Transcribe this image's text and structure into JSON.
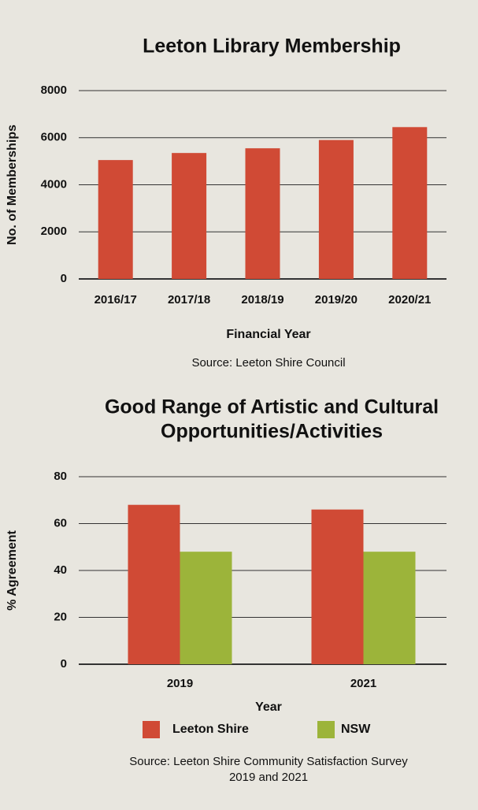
{
  "chart_data": [
    {
      "type": "bar",
      "title": [
        "Leeton Library Membership"
      ],
      "categories": [
        "2016/17",
        "2017/18",
        "2018/19",
        "2019/20",
        "2020/21"
      ],
      "values": [
        5050,
        5350,
        5550,
        5900,
        6450
      ],
      "color": "#d04a35",
      "ylim": [
        0,
        8000
      ],
      "yticks": [
        0,
        2000,
        4000,
        6000,
        8000
      ],
      "grid": true,
      "x_label": "Financial Year",
      "y_label": "No. of Memberships",
      "source": [
        "Source: Leeton Shire Council"
      ]
    },
    {
      "type": "grouped_bar",
      "title": [
        "Good Range of Artistic and Cultural",
        "Opportunities/Activities"
      ],
      "categories": [
        "2019",
        "2021"
      ],
      "series": [
        {
          "name": "Leeton Shire",
          "color": "#d04a35",
          "values": [
            68,
            66
          ]
        },
        {
          "name": "NSW",
          "color": "#9cb43a",
          "values": [
            48,
            48
          ]
        }
      ],
      "ylim": [
        0,
        80
      ],
      "yticks": [
        0,
        20,
        40,
        60,
        80
      ],
      "grid": true,
      "legend": "bottom",
      "x_label": "Year",
      "y_label": "% Agreement",
      "source": [
        "Source: Leeton Shire Community Satisfaction Survey",
        "2019 and 2021"
      ]
    }
  ]
}
